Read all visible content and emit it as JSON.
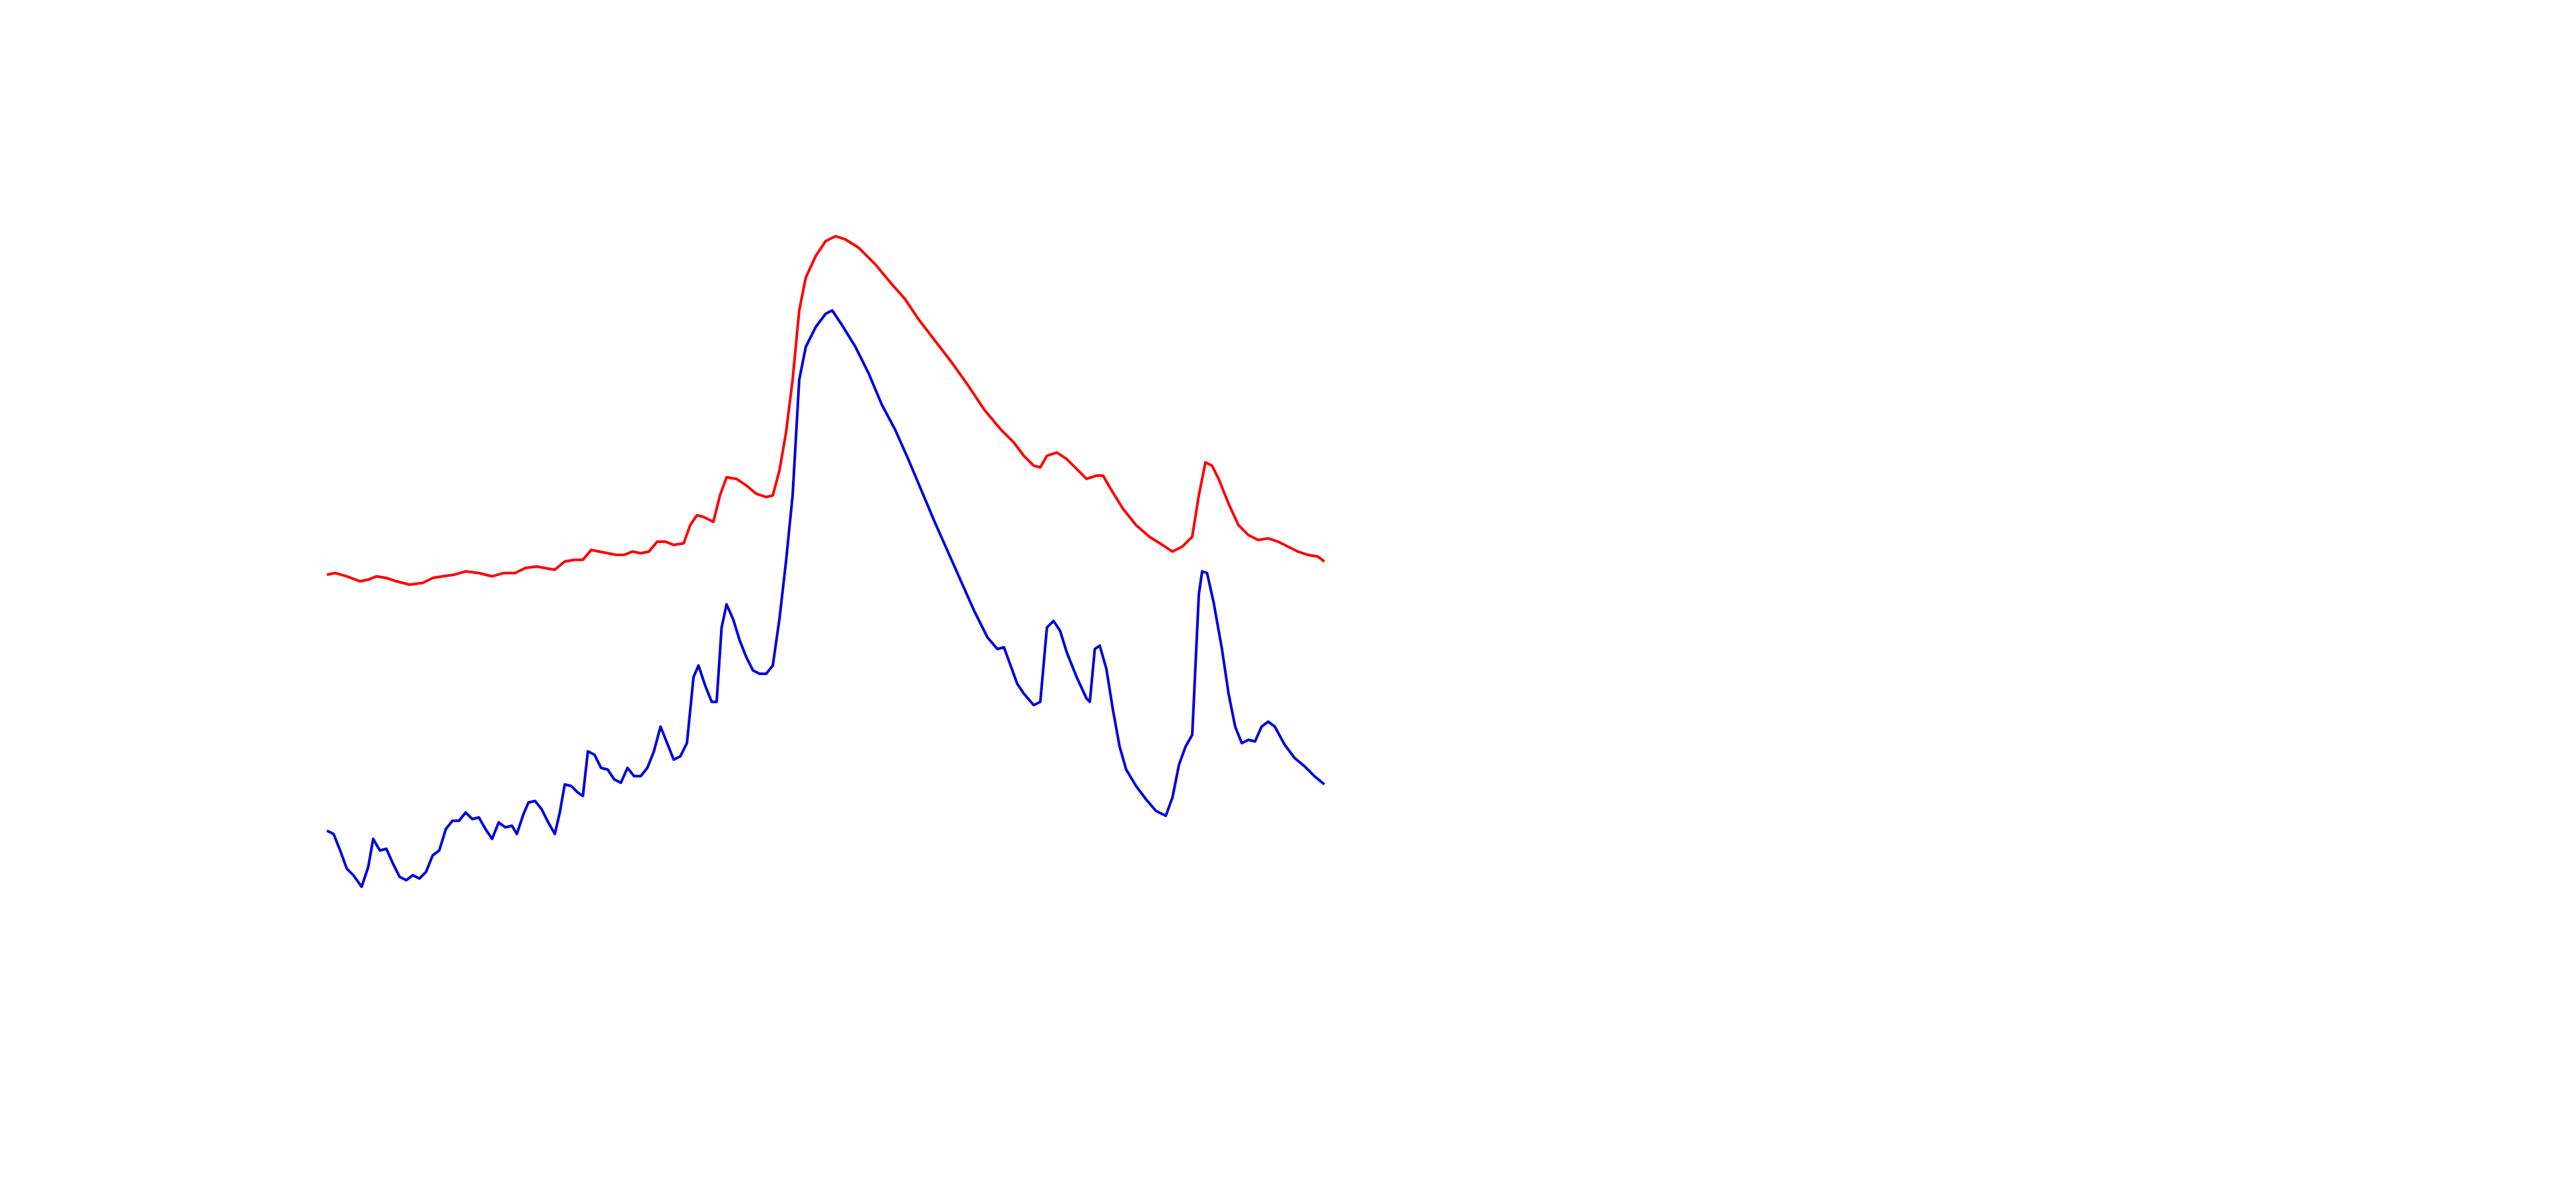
{
  "chart_data": {
    "type": "line",
    "xlim": [
      0,
      604
    ],
    "ylim": [
      0,
      720
    ],
    "series": [
      {
        "color": "#ff0000",
        "x": [
          0,
          5,
          12,
          20,
          25,
          30,
          36,
          42,
          50,
          58,
          64,
          70,
          77,
          84,
          92,
          100,
          107,
          114,
          120,
          127,
          132,
          138,
          144,
          150,
          155,
          160,
          165,
          170,
          175,
          180,
          185,
          190,
          195,
          200,
          205,
          210,
          216,
          220,
          224,
          228,
          234,
          238,
          242,
          248,
          254,
          260,
          266,
          270,
          274,
          278,
          282,
          286,
          290,
          296,
          302,
          308,
          314,
          322,
          332,
          342,
          350,
          358,
          368,
          378,
          388,
          398,
          408,
          416,
          422,
          428,
          432,
          436,
          442,
          448,
          454,
          460,
          466,
          470,
          474,
          482,
          490,
          498,
          506,
          512,
          518,
          524,
          528,
          532,
          536,
          540,
          546,
          552,
          558,
          564,
          570,
          576,
          582,
          588,
          594,
          600,
          604
        ],
        "values": [
          372,
          373,
          371,
          368,
          369,
          371,
          370,
          368,
          366,
          367,
          370,
          371,
          372,
          374,
          373,
          371,
          373,
          373,
          376,
          377,
          376,
          375,
          380,
          381,
          381,
          387,
          386,
          385,
          384,
          384,
          386,
          385,
          386,
          392,
          392,
          390,
          391,
          402,
          408,
          407,
          404,
          420,
          431,
          430,
          426,
          421,
          419,
          420,
          435,
          458,
          490,
          532,
          552,
          565,
          574,
          577,
          575,
          570,
          560,
          548,
          539,
          527,
          514,
          501,
          487,
          472,
          460,
          452,
          444,
          438,
          437,
          444,
          446,
          442,
          436,
          430,
          432,
          432,
          425,
          412,
          402,
          395,
          390,
          386,
          389,
          395,
          420,
          440,
          438,
          430,
          415,
          402,
          396,
          393,
          394,
          392,
          389,
          386,
          384,
          383,
          380
        ]
      },
      {
        "color": "#0000dd",
        "x": [
          0,
          4,
          8,
          12,
          16,
          21,
          25,
          28,
          32,
          36,
          40,
          44,
          48,
          52,
          56,
          60,
          64,
          68,
          72,
          76,
          80,
          84,
          88,
          92,
          96,
          100,
          104,
          108,
          112,
          115,
          119,
          122,
          126,
          130,
          134,
          138,
          141,
          144,
          148,
          152,
          155,
          158,
          162,
          166,
          170,
          174,
          178,
          182,
          186,
          190,
          194,
          198,
          202,
          206,
          210,
          214,
          218,
          222,
          225,
          229,
          233,
          236,
          239,
          242,
          246,
          250,
          254,
          258,
          262,
          266,
          270,
          274,
          278,
          282,
          286,
          290,
          296,
          302,
          306,
          312,
          320,
          328,
          336,
          344,
          352,
          360,
          368,
          376,
          384,
          392,
          400,
          406,
          410,
          414,
          418,
          422,
          428,
          432,
          436,
          440,
          444,
          448,
          454,
          460,
          462,
          465,
          468,
          472,
          476,
          480,
          484,
          490,
          496,
          502,
          508,
          512,
          516,
          520,
          524,
          528,
          530,
          533,
          537,
          542,
          546,
          550,
          554,
          558,
          562,
          566,
          570,
          574,
          580,
          586,
          592,
          598,
          604
        ],
        "values": [
          217,
          215,
          205,
          194,
          190,
          183,
          195,
          212,
          205,
          206,
          197,
          189,
          187,
          190,
          188,
          192,
          202,
          205,
          218,
          223,
          223,
          228,
          224,
          225,
          218,
          212,
          222,
          219,
          220,
          215,
          227,
          234,
          235,
          230,
          222,
          215,
          228,
          245,
          244,
          240,
          238,
          265,
          263,
          255,
          254,
          248,
          246,
          255,
          250,
          250,
          255,
          265,
          280,
          270,
          260,
          262,
          270,
          310,
          317,
          305,
          295,
          295,
          340,
          354,
          345,
          332,
          322,
          314,
          312,
          312,
          317,
          345,
          380,
          420,
          490,
          510,
          522,
          530,
          532,
          523,
          510,
          494,
          475,
          460,
          442,
          423,
          404,
          386,
          368,
          350,
          334,
          327,
          328,
          317,
          306,
          300,
          293,
          295,
          340,
          344,
          338,
          325,
          310,
          297,
          295,
          327,
          329,
          315,
          290,
          268,
          254,
          244,
          236,
          229,
          226,
          237,
          257,
          268,
          275,
          360,
          374,
          373,
          355,
          327,
          300,
          280,
          270,
          272,
          271,
          280,
          283,
          280,
          269,
          261,
          256,
          250,
          245
        ]
      }
    ]
  }
}
